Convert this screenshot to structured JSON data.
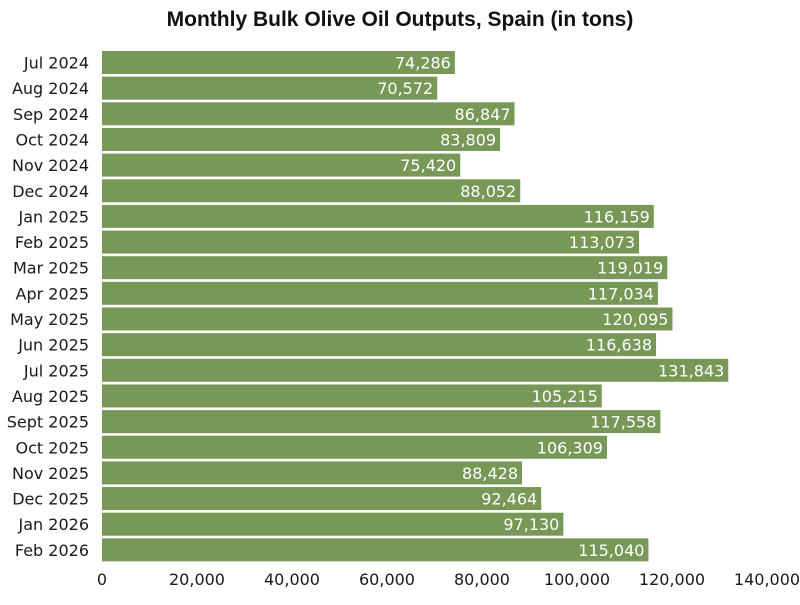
{
  "colors": {
    "bar": "#789858",
    "bar_label": "#ffffff",
    "text": "#1a1a1a"
  },
  "chart_data": {
    "type": "bar",
    "orientation": "horizontal",
    "title": "Monthly Bulk Olive Oil Outputs, Spain (in tons)",
    "xlabel": "",
    "ylabel": "",
    "xlim": [
      0,
      140000
    ],
    "x_ticks": [
      0,
      20000,
      40000,
      60000,
      80000,
      100000,
      120000,
      140000
    ],
    "x_tick_labels": [
      "0",
      "20,000",
      "40,000",
      "60,000",
      "80,000",
      "100,000",
      "120,000",
      "140,000"
    ],
    "grid": false,
    "categories": [
      "Jul 2024",
      "Aug 2024",
      "Sep 2024",
      "Oct 2024",
      "Nov 2024",
      "Dec 2024",
      "Jan 2025",
      "Feb 2025",
      "Mar 2025",
      "Apr 2025",
      "May 2025",
      "Jun 2025",
      "Jul 2025",
      "Aug 2025",
      "Sept 2025",
      "Oct 2025",
      "Nov 2025",
      "Dec 2025",
      "Jan 2026",
      "Feb 2026"
    ],
    "values": [
      74286,
      70572,
      86847,
      83809,
      75420,
      88052,
      116159,
      113073,
      119019,
      117034,
      120095,
      116638,
      131843,
      105215,
      117558,
      106309,
      88428,
      92464,
      97130,
      115040
    ],
    "value_labels": [
      "74,286",
      "70,572",
      "86,847",
      "83,809",
      "75,420",
      "88,052",
      "116,159",
      "113,073",
      "119,019",
      "117,034",
      "120,095",
      "116,638",
      "131,843",
      "105,215",
      "117,558",
      "106,309",
      "88,428",
      "92,464",
      "97,130",
      "115,040"
    ]
  }
}
